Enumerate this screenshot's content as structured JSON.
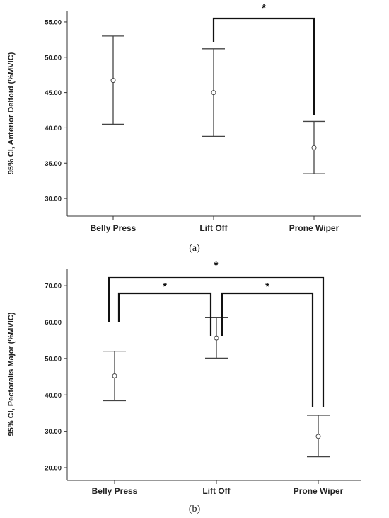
{
  "chart_data": [
    {
      "type": "errorbar",
      "panel_label": "(a)",
      "ylabel": "95% CI, Anterior Deltoid (%MVIC)",
      "categories": [
        "Belly Press",
        "Lift Off",
        "Prone Wiper"
      ],
      "means": [
        46.7,
        45.0,
        37.2
      ],
      "lower": [
        40.5,
        38.8,
        33.5
      ],
      "upper": [
        53.0,
        51.2,
        40.9
      ],
      "ylim": [
        27.5,
        56.6
      ],
      "yticks": [
        "30.00",
        "35.00",
        "40.00",
        "45.00",
        "50.00",
        "55.00"
      ],
      "significance": [
        {
          "from": 1,
          "to": 2,
          "label": "*"
        }
      ]
    },
    {
      "type": "errorbar",
      "panel_label": "(b)",
      "ylabel": "95% CI, Pectoralis Major (%MVIC)",
      "categories": [
        "Belly Press",
        "Lift Off",
        "Prone Wiper"
      ],
      "means": [
        45.2,
        55.6,
        28.6
      ],
      "lower": [
        38.4,
        50.1,
        23.0
      ],
      "upper": [
        52.0,
        61.2,
        34.4
      ],
      "ylim": [
        16.5,
        74.5
      ],
      "yticks": [
        "20.00",
        "30.00",
        "40.00",
        "50.00",
        "60.00",
        "70.00"
      ],
      "significance": [
        {
          "from": 0,
          "to": 2,
          "label": "*"
        },
        {
          "from": 0,
          "to": 1,
          "label": "*"
        },
        {
          "from": 1,
          "to": 2,
          "label": "*"
        }
      ]
    }
  ]
}
